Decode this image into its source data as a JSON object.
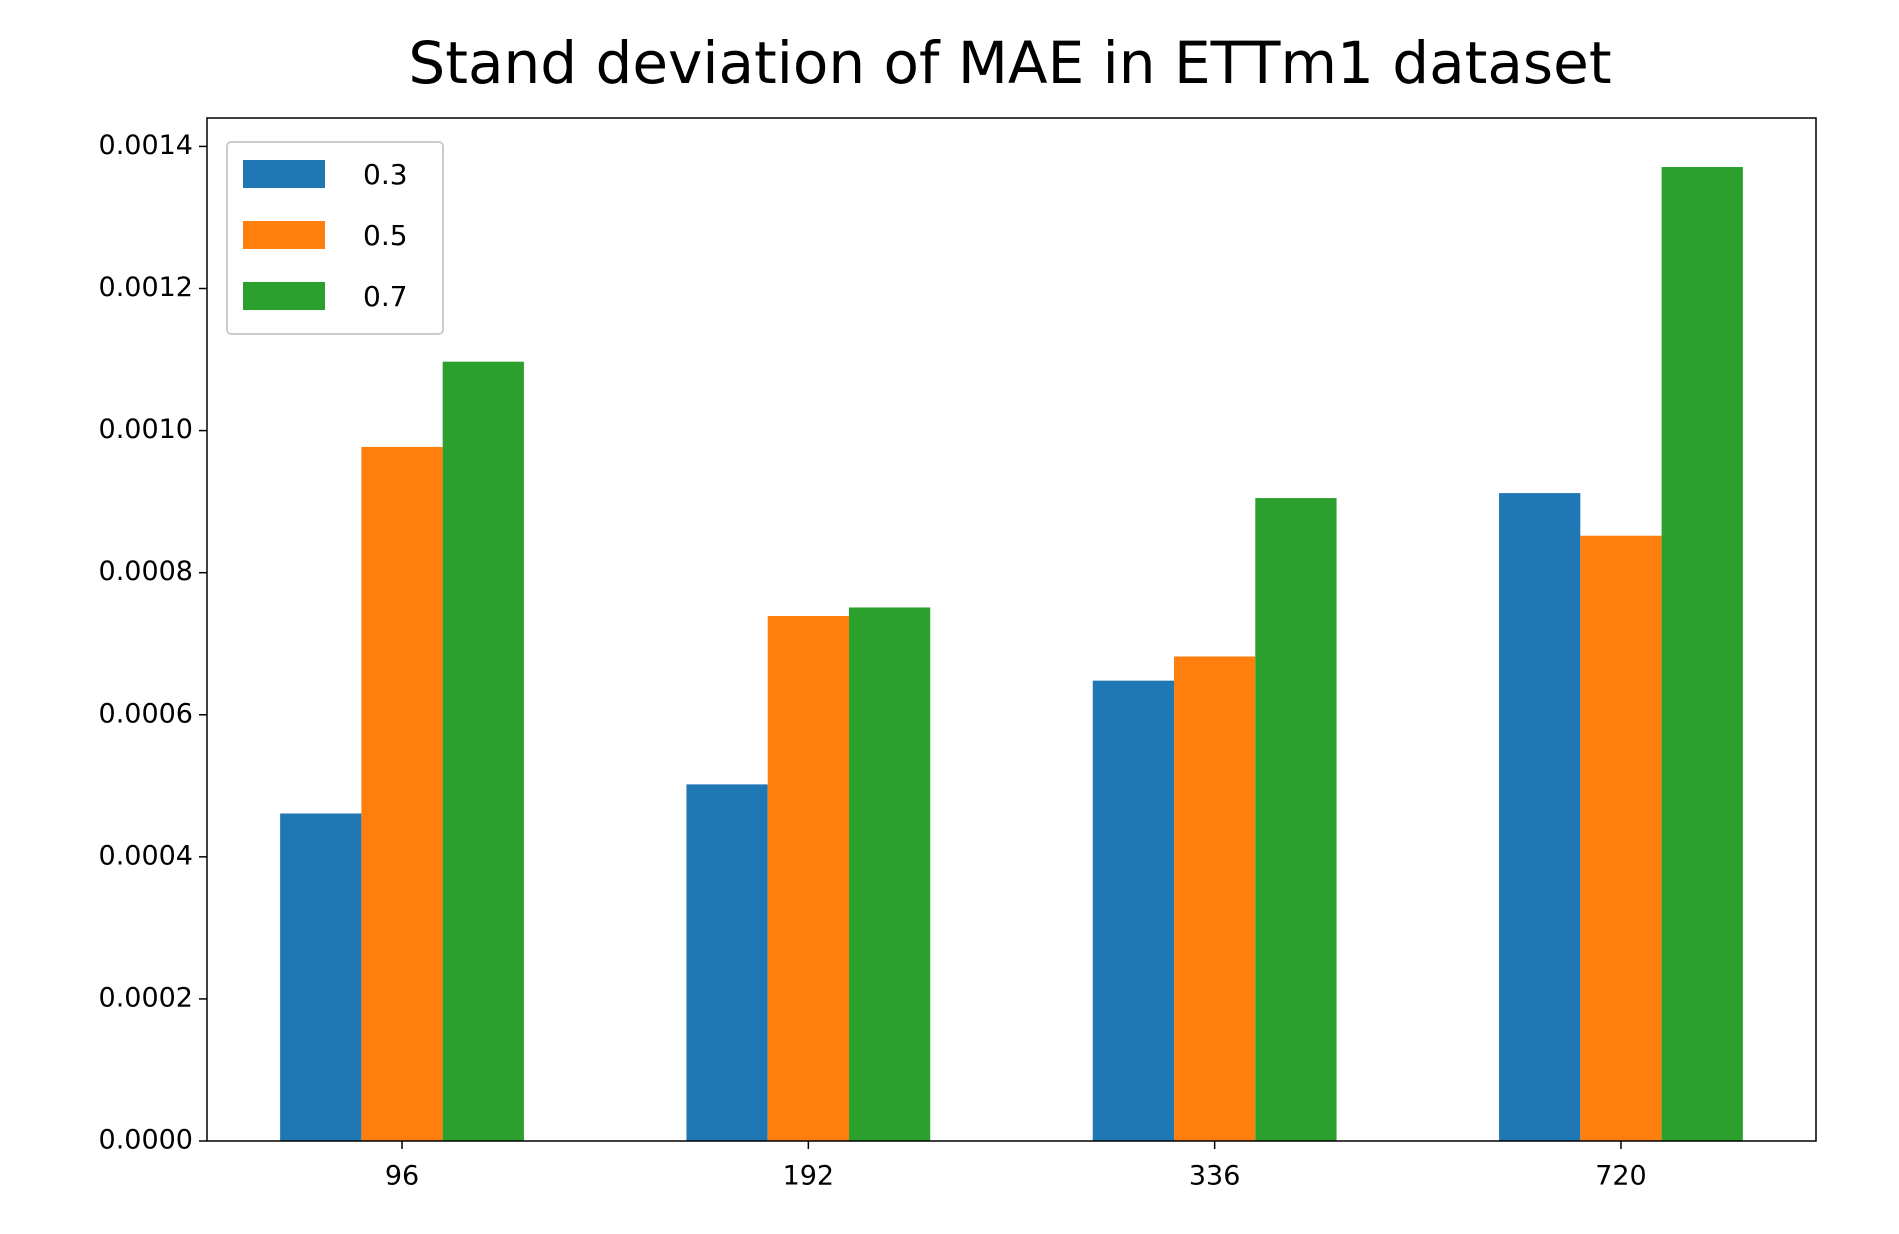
{
  "chart_data": {
    "type": "bar",
    "title": "Stand deviation of MAE in ETTm1 dataset",
    "categories": [
      "96",
      "192",
      "336",
      "720"
    ],
    "series": [
      {
        "name": "0.3",
        "color": "#1f77b4",
        "values": [
          0.000461,
          0.000502,
          0.000648,
          0.000912
        ]
      },
      {
        "name": "0.5",
        "color": "#ff7f0e",
        "values": [
          0.000977,
          0.000739,
          0.000682,
          0.000852
        ]
      },
      {
        "name": "0.7",
        "color": "#2ca02c",
        "values": [
          0.001097,
          0.000751,
          0.000905,
          0.001371
        ]
      }
    ],
    "ylim": [
      0,
      0.00144
    ],
    "yticks": [
      {
        "value": 0,
        "label": "0.0000"
      },
      {
        "value": 0.0002,
        "label": "0.0002"
      },
      {
        "value": 0.0004,
        "label": "0.0004"
      },
      {
        "value": 0.0006,
        "label": "0.0006"
      },
      {
        "value": 0.0008,
        "label": "0.0008"
      },
      {
        "value": 0.001,
        "label": "0.0010"
      },
      {
        "value": 0.0012,
        "label": "0.0012"
      },
      {
        "value": 0.0014,
        "label": "0.0014"
      }
    ],
    "legend": "upper left",
    "grid": false
  }
}
